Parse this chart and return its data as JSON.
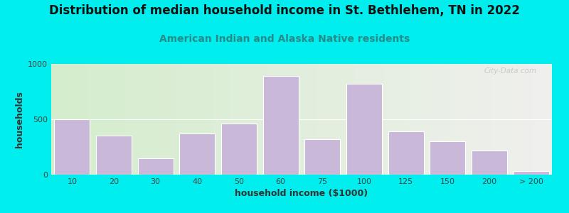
{
  "title": "Distribution of median household income in St. Bethlehem, TN in 2022",
  "subtitle": "American Indian and Alaska Native residents",
  "xlabel": "household income ($1000)",
  "ylabel": "households",
  "bar_labels": [
    "10",
    "20",
    "30",
    "40",
    "50",
    "60",
    "75",
    "100",
    "125",
    "150",
    "200",
    "> 200"
  ],
  "bar_values": [
    500,
    350,
    150,
    370,
    460,
    890,
    320,
    820,
    390,
    300,
    215,
    35
  ],
  "bar_color": "#c9b8d8",
  "bar_edge_color": "#ffffff",
  "ylim": [
    0,
    1000
  ],
  "yticks": [
    0,
    500,
    1000
  ],
  "background_outer": "#00eeee",
  "title_fontsize": 12,
  "subtitle_fontsize": 10,
  "subtitle_color": "#2a8a8a",
  "watermark": "City-Data.com"
}
